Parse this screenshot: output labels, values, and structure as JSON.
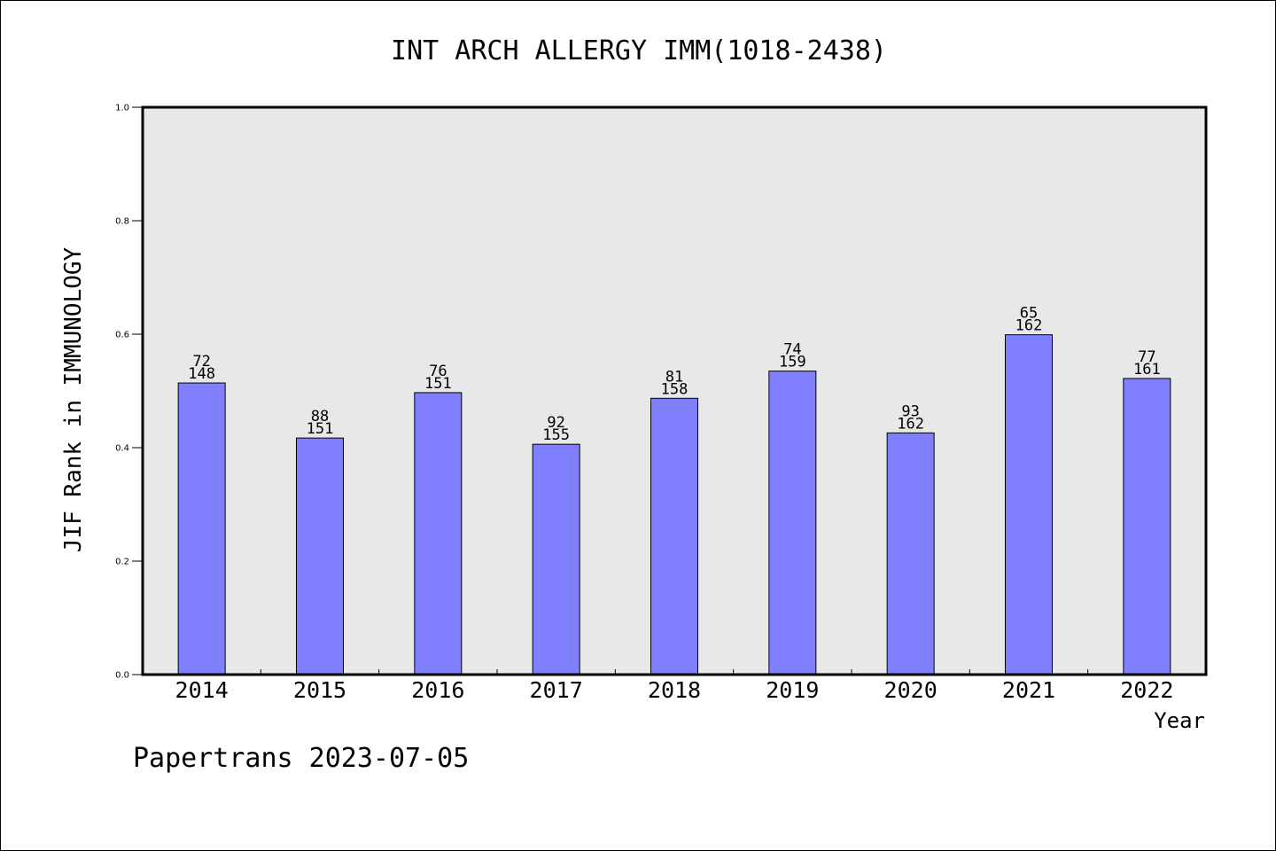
{
  "chart_data": {
    "type": "bar",
    "title": "INT ARCH ALLERGY IMM(1018-2438)",
    "xlabel": "Year",
    "ylabel": "JIF Rank in IMMUNOLOGY",
    "ylim": [
      0,
      1.0
    ],
    "yticks": [
      "0.0",
      "0.2",
      "0.4",
      "0.6",
      "0.8",
      "1.0"
    ],
    "categories": [
      "2014",
      "2015",
      "2016",
      "2017",
      "2018",
      "2019",
      "2020",
      "2021",
      "2022"
    ],
    "values": [
      0.514,
      0.417,
      0.497,
      0.406,
      0.487,
      0.535,
      0.426,
      0.599,
      0.522
    ],
    "rank": [
      "72",
      "88",
      "76",
      "92",
      "81",
      "74",
      "93",
      "65",
      "77"
    ],
    "total": [
      "148",
      "151",
      "151",
      "155",
      "158",
      "159",
      "162",
      "162",
      "161"
    ],
    "grid": false,
    "colors": {
      "bar": "#8080ff",
      "plot_bg": "#e8e8e8"
    }
  },
  "footer": {
    "text": "Papertrans 2023-07-05"
  }
}
